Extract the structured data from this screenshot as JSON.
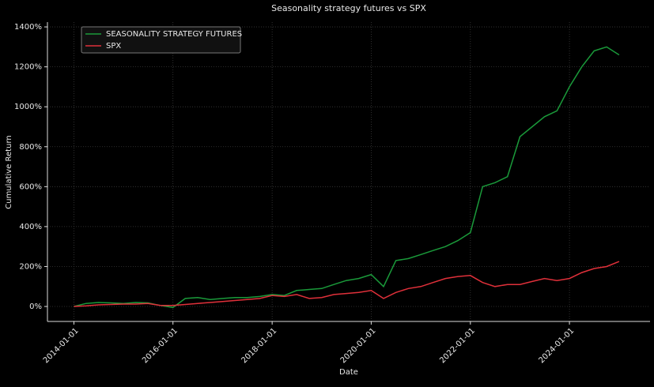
{
  "chart_data": {
    "type": "line",
    "title": "Seasonality strategy futures vs SPX",
    "xlabel": "Date",
    "ylabel": "Cumulative Return",
    "x": [
      "2014-01-01",
      "2014-04-01",
      "2014-07-01",
      "2014-10-01",
      "2015-01-01",
      "2015-04-01",
      "2015-07-01",
      "2015-10-01",
      "2016-01-01",
      "2016-04-01",
      "2016-07-01",
      "2016-10-01",
      "2017-01-01",
      "2017-04-01",
      "2017-07-01",
      "2017-10-01",
      "2018-01-01",
      "2018-04-01",
      "2018-07-01",
      "2018-10-01",
      "2019-01-01",
      "2019-04-01",
      "2019-07-01",
      "2019-10-01",
      "2020-01-01",
      "2020-04-01",
      "2020-07-01",
      "2020-10-01",
      "2021-01-01",
      "2021-04-01",
      "2021-07-01",
      "2021-10-01",
      "2022-01-01",
      "2022-04-01",
      "2022-07-01",
      "2022-10-01",
      "2023-01-01",
      "2023-04-01",
      "2023-07-01",
      "2023-10-01",
      "2024-01-01",
      "2024-04-01",
      "2024-07-01",
      "2024-10-01",
      "2025-01-01"
    ],
    "series": [
      {
        "name": "SEASONALITY STRATEGY FUTURES",
        "color": "#1a9a3a",
        "values": [
          0,
          15,
          20,
          18,
          15,
          20,
          18,
          5,
          -5,
          40,
          45,
          35,
          40,
          45,
          45,
          50,
          60,
          55,
          80,
          85,
          90,
          110,
          130,
          140,
          160,
          100,
          230,
          240,
          260,
          280,
          300,
          330,
          370,
          600,
          620,
          650,
          850,
          900,
          950,
          980,
          1100,
          1200,
          1280,
          1300,
          1260
        ]
      },
      {
        "name": "SPX",
        "color": "#e0303a",
        "values": [
          0,
          3,
          8,
          10,
          12,
          12,
          15,
          5,
          5,
          10,
          15,
          20,
          25,
          30,
          35,
          40,
          55,
          50,
          60,
          40,
          45,
          60,
          65,
          70,
          80,
          40,
          70,
          90,
          100,
          120,
          140,
          150,
          155,
          120,
          100,
          110,
          110,
          125,
          140,
          130,
          140,
          170,
          190,
          200,
          225
        ]
      }
    ],
    "xlim": [
      "2013-06-20",
      "2025-08-17"
    ],
    "xticks": [
      "2014-01-01",
      "2016-01-01",
      "2018-01-01",
      "2020-01-01",
      "2022-01-01",
      "2024-01-01"
    ],
    "ylim": [
      -75,
      1424
    ],
    "yticks": [
      {
        "value": 0,
        "label": "0%"
      },
      {
        "value": 200,
        "label": "200%"
      },
      {
        "value": 400,
        "label": "400%"
      },
      {
        "value": 600,
        "label": "600%"
      },
      {
        "value": 800,
        "label": "800%"
      },
      {
        "value": 1000,
        "label": "1000%"
      },
      {
        "value": 1200,
        "label": "1200%"
      },
      {
        "value": 1400,
        "label": "1400%"
      }
    ],
    "grid": true,
    "legend": "upper left"
  }
}
